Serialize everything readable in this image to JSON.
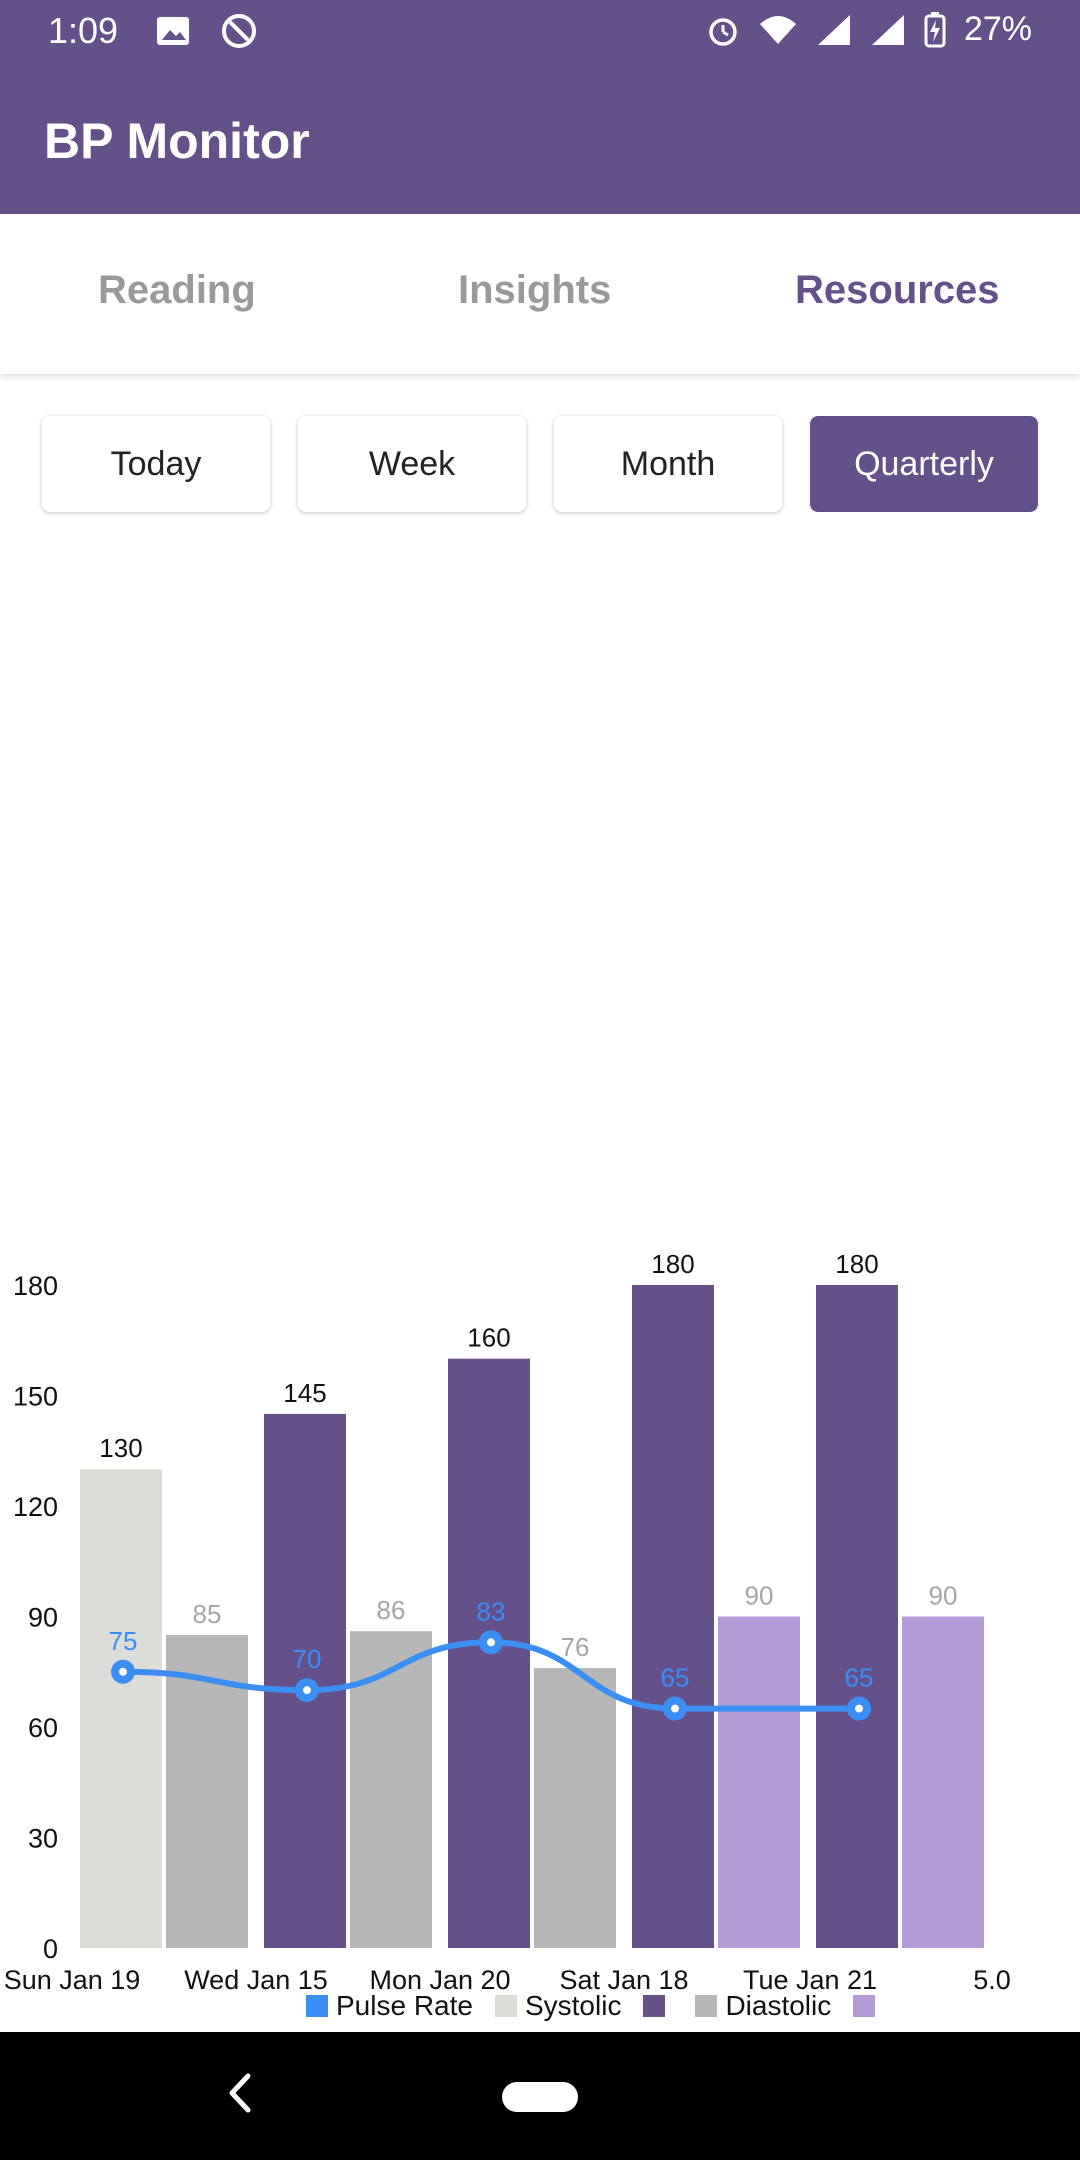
{
  "status_bar": {
    "time": "1:09",
    "battery": "27%",
    "icons": [
      "image-icon",
      "sync-icon",
      "alarm-icon",
      "wifi-icon",
      "signal-r-icon",
      "signal-icon",
      "battery-charging-icon"
    ]
  },
  "app": {
    "title": "BP Monitor"
  },
  "tabs": [
    {
      "label": "Reading",
      "active": false
    },
    {
      "label": "Insights",
      "active": false
    },
    {
      "label": "Resources",
      "active": true
    }
  ],
  "ranges": [
    {
      "label": "Today",
      "active": false
    },
    {
      "label": "Week",
      "active": false
    },
    {
      "label": "Month",
      "active": false
    },
    {
      "label": "Quarterly",
      "active": true
    }
  ],
  "colors": {
    "primary": "#65518A",
    "systolic_first": "#DCDCD8",
    "systolic": "#65518A",
    "diastolic_gray": "#B8B7B8",
    "diastolic": "#B39BD8",
    "pulse": "#3B8EF3"
  },
  "chart_data": {
    "type": "bar",
    "categories": [
      "Sun Jan 19",
      "Wed Jan 15",
      "Mon Jan 20",
      "Sat Jan 18",
      "Tue Jan 21"
    ],
    "extra_x_tick": "5.0",
    "ylim": [
      0,
      180
    ],
    "yticks": [
      0,
      30,
      60,
      90,
      120,
      150,
      180
    ],
    "series": [
      {
        "name": "Pulse Rate",
        "type": "line",
        "values": [
          75,
          70,
          83,
          65,
          65
        ]
      },
      {
        "name": "Systolic",
        "type": "bar",
        "values": [
          130,
          145,
          160,
          180,
          180
        ]
      },
      {
        "name": "Diastolic",
        "type": "bar",
        "values": [
          85,
          86,
          76,
          90,
          90
        ]
      }
    ],
    "legend_position": "bottom-center",
    "value_labels": {
      "systolic": [
        "130",
        "145",
        "160",
        "180",
        "180"
      ],
      "diastolic": [
        "85",
        "86",
        "76",
        "90",
        "90"
      ],
      "pulse": [
        "75",
        "70",
        "83",
        "65",
        "65"
      ]
    }
  },
  "legend": [
    {
      "label": "Pulse Rate",
      "color": "#3B8EF3"
    },
    {
      "label": "Systolic",
      "color": "#DCDCD8"
    },
    {
      "label": "",
      "color": "#65518A"
    },
    {
      "label": "Diastolic",
      "color": "#B8B7B8"
    },
    {
      "label": "",
      "color": "#B39BD8"
    }
  ]
}
